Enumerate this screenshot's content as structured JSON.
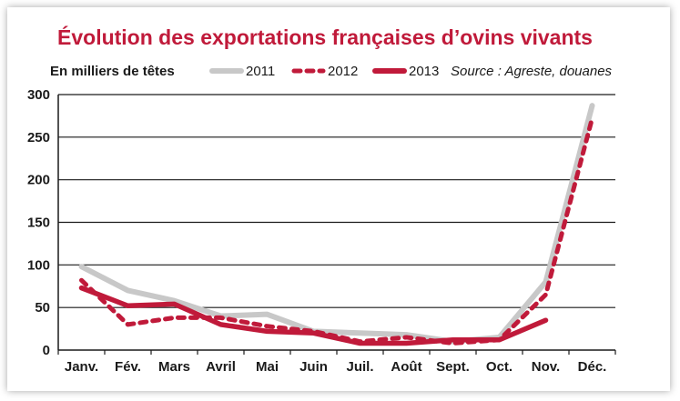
{
  "chart_data": {
    "type": "line",
    "title": "Évolution des exportations françaises d’ovins vivants",
    "ylabel": "En milliers de têtes",
    "source": "Source : Agreste, douanes",
    "categories": [
      "Janv.",
      "Fév.",
      "Mars",
      "Avril",
      "Mai",
      "Juin",
      "Juil.",
      "Août",
      "Sept.",
      "Oct.",
      "Nov.",
      "Déc."
    ],
    "yticks": [
      0,
      50,
      100,
      150,
      200,
      250,
      300
    ],
    "ylim": [
      0,
      300
    ],
    "grid": true,
    "legend_position": "top",
    "series": [
      {
        "name": "2011",
        "style": "solid",
        "color": "#c8c8c8",
        "values": [
          98,
          70,
          58,
          40,
          42,
          22,
          20,
          18,
          10,
          15,
          80,
          287
        ]
      },
      {
        "name": "2012",
        "style": "dotted",
        "color": "#c01a3a",
        "values": [
          82,
          30,
          38,
          38,
          28,
          22,
          10,
          15,
          8,
          12,
          65,
          272
        ]
      },
      {
        "name": "2013",
        "style": "solid",
        "color": "#c01a3a",
        "values": [
          73,
          52,
          54,
          30,
          22,
          20,
          8,
          8,
          12,
          12,
          35,
          null
        ]
      }
    ]
  }
}
